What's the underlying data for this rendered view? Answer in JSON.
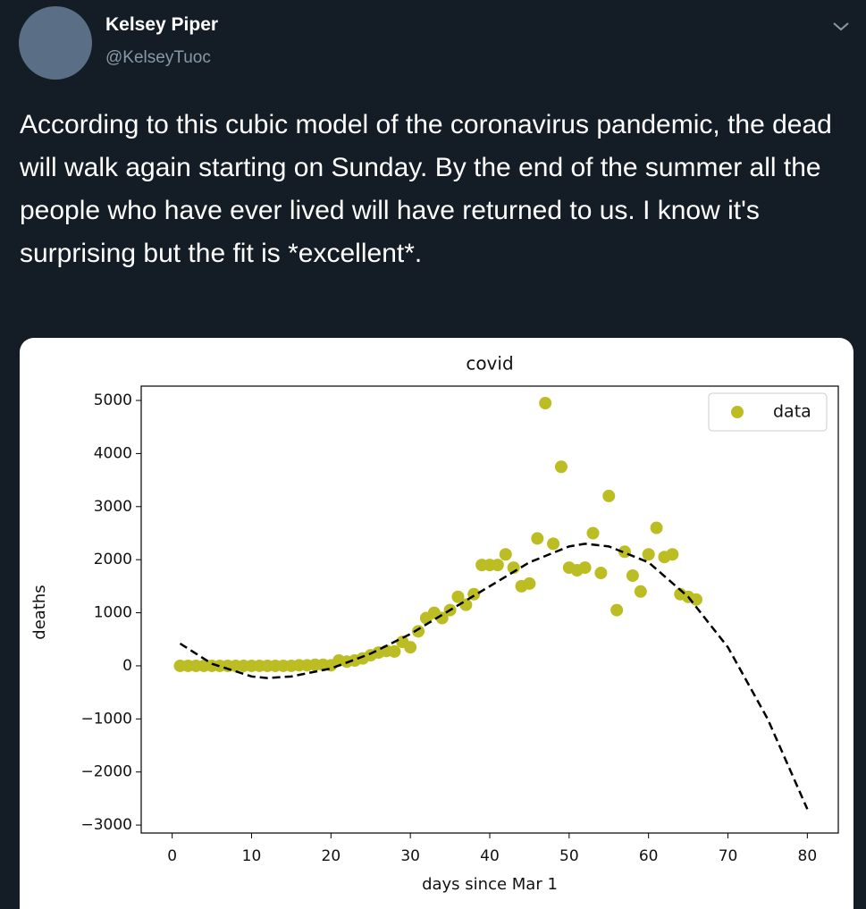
{
  "tweet": {
    "author": "Kelsey Piper",
    "handle": "@KelseyTuoc",
    "text": "According to this cubic model of the coronavirus pandemic, the dead will walk again starting on Sunday. By the end of the summer all the people who have ever lived will have returned to us. I know it's surprising but the fit is *excellent*."
  },
  "chart_data": {
    "type": "scatter",
    "title": "covid",
    "xlabel": "days since Mar 1",
    "ylabel": "deaths",
    "xlim": [
      -3.9,
      83.9
    ],
    "ylim": [
      -3150,
      5270
    ],
    "xticks": [
      0,
      10,
      20,
      30,
      40,
      50,
      60,
      70,
      80
    ],
    "yticks": [
      {
        "value": -3000,
        "label": "−3000"
      },
      {
        "value": -2000,
        "label": "−2000"
      },
      {
        "value": -1000,
        "label": "−1000"
      },
      0,
      1000,
      2000,
      3000,
      4000,
      5000
    ],
    "legend": "upper right",
    "series": [
      {
        "name": "data",
        "color": "#bcbd22",
        "x": [
          1,
          2,
          3,
          4,
          5,
          6,
          7,
          8,
          9,
          10,
          11,
          12,
          13,
          14,
          15,
          16,
          17,
          18,
          19,
          20,
          21,
          22,
          23,
          24,
          25,
          26,
          27,
          28,
          29,
          30,
          31,
          32,
          33,
          34,
          35,
          36,
          37,
          38,
          39,
          40,
          41,
          42,
          43,
          44,
          45,
          46,
          47,
          48,
          49,
          50,
          51,
          52,
          53,
          54,
          55,
          56,
          57,
          58,
          59,
          60,
          61,
          62,
          63,
          64,
          65,
          66
        ],
        "values": [
          0,
          0,
          0,
          0,
          0,
          0,
          0,
          0,
          0,
          0,
          0,
          0,
          0,
          0,
          0,
          10,
          10,
          20,
          20,
          10,
          100,
          80,
          100,
          140,
          200,
          250,
          280,
          270,
          450,
          350,
          650,
          900,
          1000,
          900,
          1050,
          1300,
          1150,
          1350,
          1900,
          1900,
          1900,
          2100,
          1850,
          1500,
          1550,
          2400,
          4950,
          2300,
          3750,
          1850,
          1800,
          1850,
          2500,
          1750,
          3200,
          1050,
          2150,
          1700,
          1400,
          2100,
          2600,
          2050,
          2100,
          1350,
          1300,
          1250
        ]
      }
    ],
    "fit": {
      "color": "#000000",
      "x": [
        1,
        5,
        10,
        12,
        15,
        20,
        25,
        30,
        35,
        40,
        45,
        50,
        52,
        55,
        60,
        65,
        70,
        75,
        80
      ],
      "values": [
        420,
        40,
        -200,
        -230,
        -200,
        -50,
        230,
        600,
        1050,
        1500,
        1950,
        2250,
        2300,
        2250,
        1950,
        1300,
        350,
        -1000,
        -2700
      ]
    }
  }
}
